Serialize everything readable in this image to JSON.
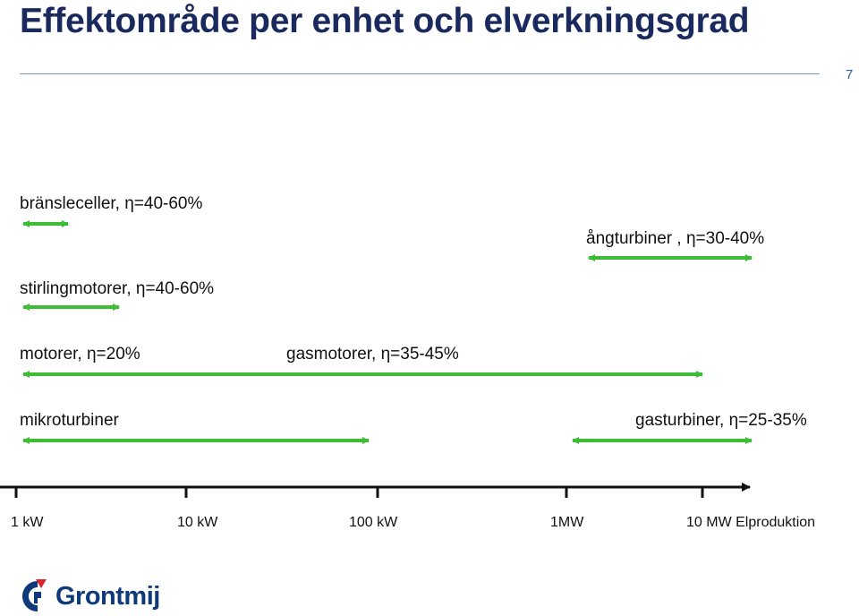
{
  "title": "Effektområde per enhet och elverkningsgrad",
  "page_number": "7",
  "colors": {
    "title": "#1a2a5e",
    "arrow": "#3cbd34",
    "axis": "#111111",
    "logo_blue": "#0f3a7a",
    "logo_red": "#d8252e"
  },
  "ranges": [
    {
      "label": "bränsleceller, η=40-60%"
    },
    {
      "label": "ångturbiner , η=30-40%"
    },
    {
      "label": "stirlingmotorer, η=40-60%"
    },
    {
      "label": "motorer, η=20%"
    },
    {
      "label": "gasmotorer, η=35-45%"
    },
    {
      "label": "mikroturbiner"
    },
    {
      "label": "gasturbiner, η=25-35%"
    }
  ],
  "axis": {
    "ticks": [
      "1 kW",
      "10 kW",
      "100 kW",
      "1MW",
      "10 MW Elproduktion"
    ]
  },
  "logo": {
    "text": "Grontmij",
    "icon": "grontmij-logo-mark"
  }
}
